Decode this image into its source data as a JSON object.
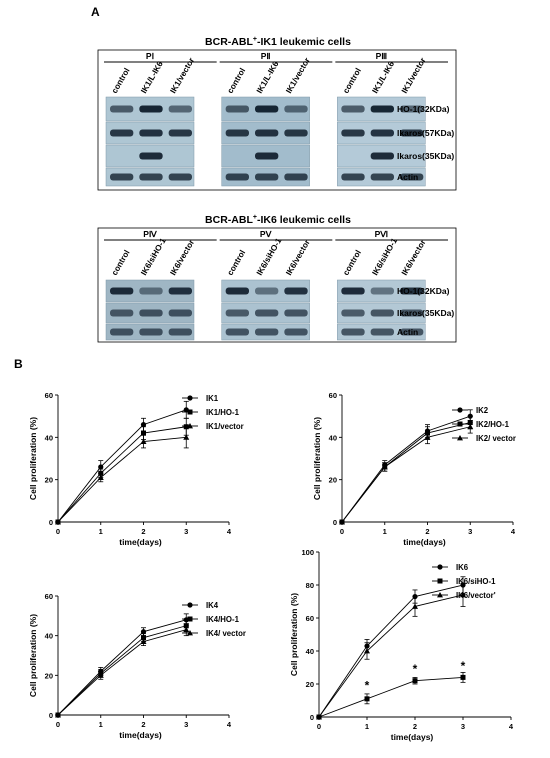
{
  "panel_a": {
    "letter": "A",
    "section1": {
      "title_prefix": "BCR-ABL",
      "title_sup": "+",
      "title_suffix": "-IK1 leukemic cells",
      "panels": [
        {
          "name": "PⅠ",
          "lanes": [
            "control",
            "IK1/L-IK6",
            "IK1/vector"
          ],
          "tone": "#aec6d3"
        },
        {
          "name": "PⅡ",
          "lanes": [
            "control",
            "IK1/L-IK6",
            "IK1/vector"
          ],
          "tone": "#a2bccc"
        },
        {
          "name": "PⅢ",
          "lanes": [
            "control",
            "IK1/L-IK6",
            "IK1/vector"
          ],
          "tone": "#b4cad8"
        }
      ],
      "rows": [
        "HO-1(32KDa)",
        "Ikaros(57KDa)",
        "Ikaros(35KDa)",
        "Actin"
      ]
    },
    "section2": {
      "title_prefix": "BCR-ABL",
      "title_sup": "+",
      "title_suffix": "-IK6 leukemic cells",
      "panels": [
        {
          "name": "PⅣ",
          "lanes": [
            "control",
            "IK6/siHO-1",
            "IK6/vector"
          ],
          "tone": "#9fb6c4"
        },
        {
          "name": "PⅤ",
          "lanes": [
            "control",
            "IK6/siHO-1",
            "IK6/vector"
          ],
          "tone": "#abc2d0"
        },
        {
          "name": "PⅥ",
          "lanes": [
            "control",
            "IK6/siHO-1",
            "IK6/vector"
          ],
          "tone": "#b3c8d5"
        }
      ],
      "rows": [
        "HO-1(32KDa)",
        "Ikaros(35KDa)",
        "Actin"
      ]
    }
  },
  "panel_b": {
    "letter": "B"
  },
  "chart_data": [
    {
      "type": "line",
      "xlabel": "time(days)",
      "ylabel": "Cell proliferation (%)",
      "xlim": [
        0,
        4
      ],
      "ylim": [
        0,
        60
      ],
      "xticks": [
        "0",
        "1",
        "2",
        "3",
        "4"
      ],
      "yticks": [
        "0",
        "20",
        "40",
        "60"
      ],
      "x": [
        0,
        1,
        2,
        3
      ],
      "series": [
        {
          "name": "IK1",
          "marker": "circle",
          "values": [
            0,
            26,
            46,
            53
          ],
          "err": [
            0,
            3,
            3,
            4
          ]
        },
        {
          "name": "IK1/HO-1",
          "marker": "square",
          "values": [
            0,
            23,
            42,
            45
          ],
          "err": [
            0,
            2,
            3,
            4
          ]
        },
        {
          "name": "IK1/vector",
          "marker": "triangle",
          "values": [
            0,
            21,
            38,
            40
          ],
          "err": [
            0,
            2,
            3,
            5
          ]
        }
      ],
      "annotations": []
    },
    {
      "type": "line",
      "xlabel": "time(days)",
      "ylabel": "Cell proliferation (%)",
      "xlim": [
        0,
        4
      ],
      "ylim": [
        0,
        60
      ],
      "xticks": [
        "0",
        "1",
        "2",
        "3",
        "4"
      ],
      "yticks": [
        "0",
        "20",
        "40",
        "60"
      ],
      "x": [
        0,
        1,
        2,
        3
      ],
      "series": [
        {
          "name": "IK2",
          "marker": "circle",
          "values": [
            0,
            27,
            43,
            50
          ],
          "err": [
            0,
            2,
            3,
            3
          ]
        },
        {
          "name": "IK2/HO-1",
          "marker": "square",
          "values": [
            0,
            26,
            42,
            47
          ],
          "err": [
            0,
            2,
            3,
            3
          ]
        },
        {
          "name": "IK2/ vector",
          "marker": "triangle",
          "values": [
            0,
            26,
            40,
            45
          ],
          "err": [
            0,
            2,
            3,
            3
          ]
        }
      ],
      "annotations": []
    },
    {
      "type": "line",
      "xlabel": "time(days)",
      "ylabel": "Cell proliferation (%)",
      "xlim": [
        0,
        4
      ],
      "ylim": [
        0,
        60
      ],
      "xticks": [
        "0",
        "1",
        "2",
        "3",
        "4"
      ],
      "yticks": [
        "0",
        "20",
        "40",
        "60"
      ],
      "x": [
        0,
        1,
        2,
        3
      ],
      "series": [
        {
          "name": "IK4",
          "marker": "circle",
          "values": [
            0,
            22,
            42,
            48
          ],
          "err": [
            0,
            2,
            2,
            3
          ]
        },
        {
          "name": "IK4/HO-1",
          "marker": "square",
          "values": [
            0,
            21,
            39,
            45
          ],
          "err": [
            0,
            2,
            2,
            3
          ]
        },
        {
          "name": "IK4/ vector",
          "marker": "triangle",
          "values": [
            0,
            20,
            37,
            43
          ],
          "err": [
            0,
            2,
            2,
            3
          ]
        }
      ],
      "annotations": []
    },
    {
      "type": "line",
      "xlabel": "time(days)",
      "ylabel": "Cell proliferation (%)",
      "xlim": [
        0,
        4
      ],
      "ylim": [
        0,
        100
      ],
      "xticks": [
        "0",
        "1",
        "2",
        "3",
        "4"
      ],
      "yticks": [
        "0",
        "20",
        "40",
        "60",
        "80",
        "100"
      ],
      "x": [
        0,
        1,
        2,
        3
      ],
      "series": [
        {
          "name": "IK6",
          "marker": "circle",
          "values": [
            0,
            43,
            73,
            80
          ],
          "err": [
            0,
            4,
            4,
            5
          ]
        },
        {
          "name": "IK6/siHO-1",
          "marker": "square",
          "values": [
            0,
            11,
            22,
            24
          ],
          "err": [
            0,
            3,
            2,
            3
          ]
        },
        {
          "name": "IK6/vector'",
          "marker": "triangle",
          "values": [
            0,
            40,
            67,
            74
          ],
          "err": [
            0,
            5,
            6,
            7
          ]
        }
      ],
      "annotations": [
        {
          "text": "*",
          "x": 1,
          "y": 19
        },
        {
          "text": "*",
          "x": 2,
          "y": 29
        },
        {
          "text": "*",
          "x": 3,
          "y": 31
        }
      ]
    }
  ]
}
